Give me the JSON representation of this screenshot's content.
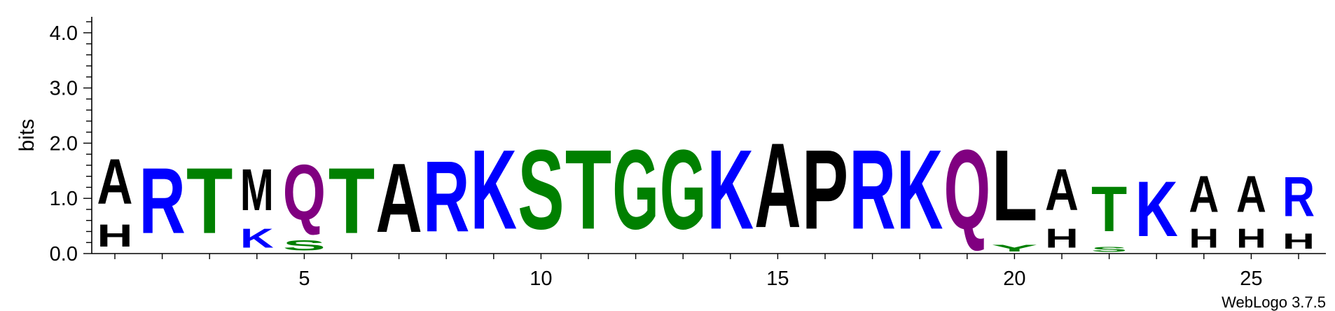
{
  "chart_data": {
    "type": "sequence-logo",
    "title": "",
    "ylabel": "bits",
    "xlabel": "",
    "ylim": [
      0,
      4.32
    ],
    "yticks": [
      "0.0",
      "1.0",
      "2.0",
      "3.0",
      "4.0"
    ],
    "ytick_values": [
      0,
      1,
      2,
      3,
      4
    ],
    "xticks": [
      "5",
      "10",
      "15",
      "20",
      "25"
    ],
    "xtick_values": [
      5,
      10,
      15,
      20,
      25
    ],
    "positions": [
      {
        "pos": 1,
        "letters": [
          {
            "aa": "H",
            "bits": 0.65
          },
          {
            "aa": "A",
            "bits": 1.3
          }
        ]
      },
      {
        "pos": 2,
        "letters": [
          {
            "aa": "R",
            "bits": 1.9
          }
        ]
      },
      {
        "pos": 3,
        "letters": [
          {
            "aa": "T",
            "bits": 1.9
          }
        ]
      },
      {
        "pos": 4,
        "letters": [
          {
            "aa": "K",
            "bits": 0.55
          },
          {
            "aa": "M",
            "bits": 1.2
          }
        ]
      },
      {
        "pos": 5,
        "letters": [
          {
            "aa": "S",
            "bits": 0.3
          },
          {
            "aa": "Q",
            "bits": 1.6
          }
        ]
      },
      {
        "pos": 6,
        "letters": [
          {
            "aa": "T",
            "bits": 1.9
          }
        ]
      },
      {
        "pos": 7,
        "letters": [
          {
            "aa": "A",
            "bits": 2.0
          }
        ]
      },
      {
        "pos": 8,
        "letters": [
          {
            "aa": "R",
            "bits": 2.05
          }
        ]
      },
      {
        "pos": 9,
        "letters": [
          {
            "aa": "K",
            "bits": 2.3
          }
        ]
      },
      {
        "pos": 10,
        "letters": [
          {
            "aa": "S",
            "bits": 2.3
          }
        ]
      },
      {
        "pos": 11,
        "letters": [
          {
            "aa": "T",
            "bits": 2.3
          }
        ]
      },
      {
        "pos": 12,
        "letters": [
          {
            "aa": "G",
            "bits": 2.3
          }
        ]
      },
      {
        "pos": 13,
        "letters": [
          {
            "aa": "G",
            "bits": 2.3
          }
        ]
      },
      {
        "pos": 14,
        "letters": [
          {
            "aa": "K",
            "bits": 2.3
          }
        ]
      },
      {
        "pos": 15,
        "letters": [
          {
            "aa": "A",
            "bits": 2.45
          }
        ]
      },
      {
        "pos": 16,
        "letters": [
          {
            "aa": "P",
            "bits": 2.3
          }
        ]
      },
      {
        "pos": 17,
        "letters": [
          {
            "aa": "R",
            "bits": 2.3
          }
        ]
      },
      {
        "pos": 18,
        "letters": [
          {
            "aa": "K",
            "bits": 2.3
          }
        ]
      },
      {
        "pos": 19,
        "letters": [
          {
            "aa": "Q",
            "bits": 2.3
          }
        ]
      },
      {
        "pos": 20,
        "letters": [
          {
            "aa": "Y",
            "bits": 0.2
          },
          {
            "aa": "L",
            "bits": 2.05
          }
        ]
      },
      {
        "pos": 21,
        "letters": [
          {
            "aa": "H",
            "bits": 0.55
          },
          {
            "aa": "A",
            "bits": 1.2
          }
        ]
      },
      {
        "pos": 22,
        "letters": [
          {
            "aa": "S",
            "bits": 0.15
          },
          {
            "aa": "T",
            "bits": 1.3
          }
        ]
      },
      {
        "pos": 23,
        "letters": [
          {
            "aa": "K",
            "bits": 1.6
          }
        ]
      },
      {
        "pos": 24,
        "letters": [
          {
            "aa": "H",
            "bits": 0.55
          },
          {
            "aa": "A",
            "bits": 1.05
          }
        ]
      },
      {
        "pos": 25,
        "letters": [
          {
            "aa": "H",
            "bits": 0.55
          },
          {
            "aa": "A",
            "bits": 1.05
          }
        ]
      },
      {
        "pos": 26,
        "letters": [
          {
            "aa": "H",
            "bits": 0.45
          },
          {
            "aa": "R",
            "bits": 1.15
          }
        ]
      }
    ],
    "color_scheme": {
      "A": "#000000",
      "P": "#000000",
      "L": "#000000",
      "M": "#000000",
      "H": "#000000",
      "R": "#0000ff",
      "K": "#0000ff",
      "S": "#008000",
      "T": "#008000",
      "G": "#008000",
      "Y": "#008000",
      "Q": "#800080"
    },
    "credit": "WebLogo 3.7.5"
  }
}
